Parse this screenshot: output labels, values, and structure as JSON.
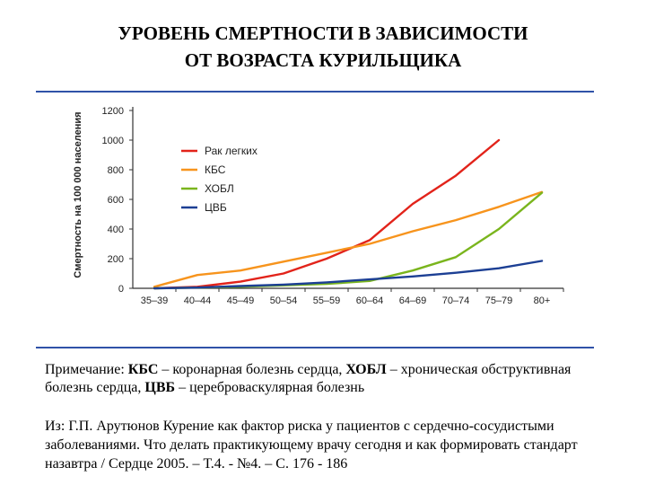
{
  "slide": {
    "title_line1": "УРОВЕНЬ СМЕРТНОСТИ В ЗАВИСИМОСТИ",
    "title_line2": "ОТ ВОЗРАСТА КУРИЛЬЩИКА"
  },
  "chart_data": {
    "type": "line",
    "title": "",
    "xlabel": "",
    "ylabel": "Смертность на 100 000 населения",
    "ylim": [
      0,
      1200
    ],
    "yticks": [
      0,
      200,
      400,
      600,
      800,
      1000,
      1200
    ],
    "categories": [
      "35–39",
      "40–44",
      "45–49",
      "50–54",
      "55–59",
      "60–64",
      "64–69",
      "70–74",
      "75–79",
      "80+"
    ],
    "legend_position": "top-left",
    "grid": false,
    "series": [
      {
        "name": "Рак легких",
        "color": "#e2231a",
        "values": [
          0,
          10,
          45,
          100,
          200,
          325,
          570,
          760,
          1000,
          null
        ]
      },
      {
        "name": "КБС",
        "color": "#f7941d",
        "values": [
          10,
          90,
          120,
          180,
          240,
          300,
          385,
          460,
          550,
          650
        ]
      },
      {
        "name": "ХОБЛ",
        "color": "#7ab51d",
        "values": [
          0,
          5,
          10,
          20,
          30,
          50,
          120,
          210,
          400,
          645
        ]
      },
      {
        "name": "ЦВБ",
        "color": "#1c3f94",
        "values": [
          0,
          5,
          15,
          25,
          40,
          60,
          80,
          105,
          135,
          185
        ]
      }
    ]
  },
  "note": {
    "prefix": "Примечание: ",
    "term1": "КБС",
    "def1": " – коронарная болезнь сердца, ",
    "term2": "ХОБЛ",
    "def2": " – хроническая обструктивная болезнь сердца, ",
    "term3": "ЦВБ",
    "def3": " – цереброваскулярная болезнь"
  },
  "source": {
    "text": "Из: Г.П. Арутюнов Курение как фактор риска у пациентов с сердечно-сосудистыми заболеваниями. Что делать практикующему врачу сегодня и как формировать стандарт назавтра / Сердце 2005. – Т.4. - №4. – С. 176 - 186"
  }
}
